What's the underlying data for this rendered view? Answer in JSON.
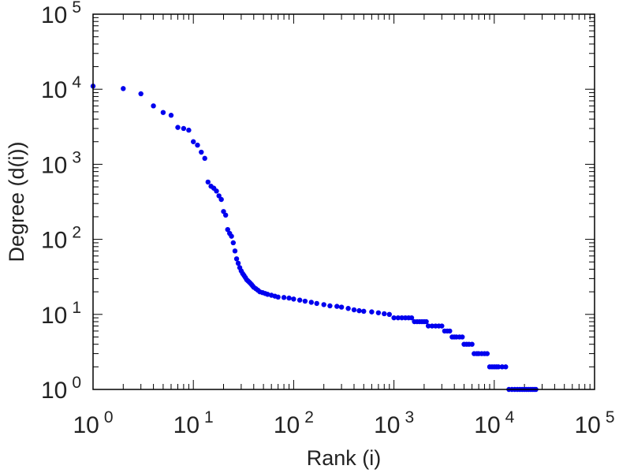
{
  "chart_data": {
    "type": "scatter",
    "xlabel": "Rank (i)",
    "ylabel": "Degree (d(i))",
    "x_scale": "log",
    "y_scale": "log",
    "xlim": [
      1,
      100000
    ],
    "ylim": [
      1,
      100000
    ],
    "x_ticks": [
      {
        "base": "10",
        "exp": "0"
      },
      {
        "base": "10",
        "exp": "1"
      },
      {
        "base": "10",
        "exp": "2"
      },
      {
        "base": "10",
        "exp": "3"
      },
      {
        "base": "10",
        "exp": "4"
      },
      {
        "base": "10",
        "exp": "5"
      }
    ],
    "y_ticks": [
      {
        "base": "10",
        "exp": "0"
      },
      {
        "base": "10",
        "exp": "1"
      },
      {
        "base": "10",
        "exp": "2"
      },
      {
        "base": "10",
        "exp": "3"
      },
      {
        "base": "10",
        "exp": "4"
      },
      {
        "base": "10",
        "exp": "5"
      }
    ],
    "grid": false,
    "marker_color": "#0000ee",
    "points": [
      [
        1,
        11000
      ],
      [
        2,
        10200
      ],
      [
        3,
        8700
      ],
      [
        4,
        6000
      ],
      [
        5,
        4900
      ],
      [
        6,
        4500
      ],
      [
        7,
        3100
      ],
      [
        8,
        3000
      ],
      [
        9,
        2850
      ],
      [
        10,
        2000
      ],
      [
        11,
        1800
      ],
      [
        12,
        1450
      ],
      [
        13,
        1200
      ],
      [
        14,
        580
      ],
      [
        15,
        510
      ],
      [
        16,
        480
      ],
      [
        17,
        440
      ],
      [
        18,
        380
      ],
      [
        19,
        340
      ],
      [
        20,
        235
      ],
      [
        21,
        210
      ],
      [
        22,
        135
      ],
      [
        23,
        120
      ],
      [
        24,
        110
      ],
      [
        25,
        90
      ],
      [
        26,
        70
      ],
      [
        27,
        55
      ],
      [
        28,
        48
      ],
      [
        29,
        42
      ],
      [
        30,
        38
      ],
      [
        31,
        35
      ],
      [
        32,
        33
      ],
      [
        33,
        31
      ],
      [
        34,
        29
      ],
      [
        35,
        28
      ],
      [
        36,
        27
      ],
      [
        37,
        26
      ],
      [
        38,
        25
      ],
      [
        39,
        24
      ],
      [
        40,
        23
      ],
      [
        42,
        22
      ],
      [
        44,
        21
      ],
      [
        46,
        20
      ],
      [
        49,
        19.5
      ],
      [
        52,
        19
      ],
      [
        55,
        18.5
      ],
      [
        60,
        18
      ],
      [
        65,
        17.5
      ],
      [
        70,
        17
      ],
      [
        80,
        16.8
      ],
      [
        90,
        16.5
      ],
      [
        100,
        16
      ],
      [
        115,
        15.5
      ],
      [
        130,
        15
      ],
      [
        150,
        14.5
      ],
      [
        170,
        14
      ],
      [
        200,
        13.5
      ],
      [
        230,
        13
      ],
      [
        270,
        12.8
      ],
      [
        300,
        12.5
      ],
      [
        350,
        12
      ],
      [
        400,
        11.5
      ],
      [
        450,
        11.2
      ],
      [
        500,
        11
      ],
      [
        600,
        10.8
      ],
      [
        700,
        10.5
      ],
      [
        800,
        10.2
      ],
      [
        900,
        10
      ],
      [
        1000,
        9
      ],
      [
        1100,
        9
      ],
      [
        1200,
        9
      ],
      [
        1300,
        9
      ],
      [
        1400,
        9
      ],
      [
        1500,
        9
      ],
      [
        1600,
        8
      ],
      [
        1700,
        8
      ],
      [
        1800,
        8
      ],
      [
        1900,
        8
      ],
      [
        2000,
        8
      ],
      [
        2100,
        8
      ],
      [
        2200,
        7
      ],
      [
        2400,
        7
      ],
      [
        2600,
        7
      ],
      [
        2800,
        7
      ],
      [
        3000,
        7
      ],
      [
        3200,
        6
      ],
      [
        3400,
        6
      ],
      [
        3600,
        6
      ],
      [
        3800,
        5
      ],
      [
        4000,
        5
      ],
      [
        4200,
        5
      ],
      [
        4500,
        5
      ],
      [
        4800,
        5
      ],
      [
        5000,
        4
      ],
      [
        5300,
        4
      ],
      [
        5600,
        4
      ],
      [
        6000,
        4
      ],
      [
        6300,
        3
      ],
      [
        6700,
        3
      ],
      [
        7000,
        3
      ],
      [
        7500,
        3
      ],
      [
        8000,
        3
      ],
      [
        8500,
        3
      ],
      [
        9000,
        2
      ],
      [
        9500,
        2
      ],
      [
        10000,
        2
      ],
      [
        10500,
        2
      ],
      [
        11000,
        2
      ],
      [
        12000,
        2
      ],
      [
        13000,
        2
      ],
      [
        14000,
        1
      ],
      [
        15000,
        1
      ],
      [
        16000,
        1
      ],
      [
        17000,
        1
      ],
      [
        18000,
        1
      ],
      [
        19000,
        1
      ],
      [
        20000,
        1
      ],
      [
        21000,
        1
      ],
      [
        22000,
        1
      ],
      [
        23000,
        1
      ],
      [
        24000,
        1
      ],
      [
        25000,
        1
      ],
      [
        26000,
        1
      ]
    ]
  }
}
